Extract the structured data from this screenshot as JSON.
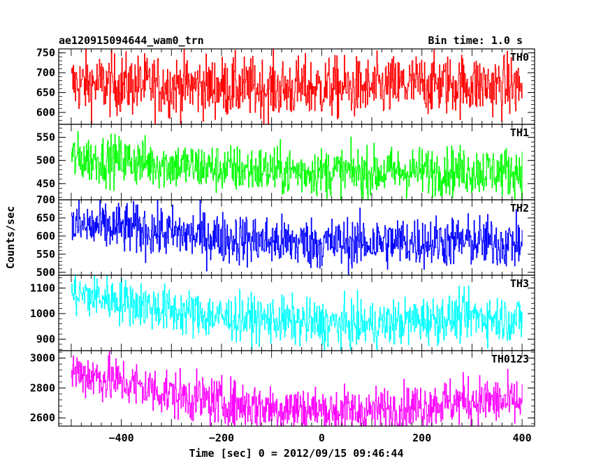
{
  "chart_data": {
    "type": "line",
    "title_left": "ae120915094644_wam0_trn",
    "title_right": "Bin time: 1.0 s",
    "xlabel": "Time [sec] 0 = 2012/09/15 09:46:44",
    "ylabel": "Counts/sec",
    "x_range": [
      -500,
      400
    ],
    "xlim": [
      -525,
      425
    ],
    "x_ticks": [
      -400,
      -200,
      0,
      200,
      400
    ],
    "x_tick_labels": [
      "−400",
      "−200",
      "0",
      "200",
      "400"
    ],
    "grid": false,
    "panels": [
      {
        "name": "TH0",
        "color": "#ff0000",
        "ylim": [
          570,
          760
        ],
        "y_ticks": [
          600,
          650,
          700,
          750
        ],
        "trend": [
          [
            -500,
            672
          ],
          [
            -300,
            668
          ],
          [
            -100,
            660
          ],
          [
            0,
            662
          ],
          [
            100,
            660
          ],
          [
            200,
            672
          ],
          [
            300,
            670
          ],
          [
            400,
            665
          ]
        ],
        "noise": 38
      },
      {
        "name": "TH1",
        "color": "#00ff00",
        "ylim": [
          415,
          578
        ],
        "y_ticks": [
          450,
          500,
          550
        ],
        "trend": [
          [
            -500,
            505
          ],
          [
            -400,
            500
          ],
          [
            -300,
            490
          ],
          [
            -200,
            482
          ],
          [
            -100,
            478
          ],
          [
            0,
            475
          ],
          [
            100,
            474
          ],
          [
            200,
            477
          ],
          [
            300,
            478
          ],
          [
            400,
            475
          ]
        ],
        "noise": 26
      },
      {
        "name": "TH2",
        "color": "#0000ff",
        "ylim": [
          492,
          700
        ],
        "y_ticks": [
          500,
          550,
          600,
          650,
          700
        ],
        "trend": [
          [
            -500,
            628
          ],
          [
            -400,
            622
          ],
          [
            -300,
            608
          ],
          [
            -200,
            595
          ],
          [
            -100,
            585
          ],
          [
            0,
            580
          ],
          [
            100,
            582
          ],
          [
            200,
            585
          ],
          [
            300,
            585
          ],
          [
            400,
            580
          ]
        ],
        "noise": 35
      },
      {
        "name": "TH3",
        "color": "#00ffff",
        "ylim": [
          855,
          1150
        ],
        "y_ticks": [
          900,
          1000,
          1100
        ],
        "trend": [
          [
            -500,
            1080
          ],
          [
            -400,
            1050
          ],
          [
            -300,
            1010
          ],
          [
            -200,
            985
          ],
          [
            -100,
            975
          ],
          [
            0,
            960
          ],
          [
            100,
            955
          ],
          [
            200,
            975
          ],
          [
            300,
            990
          ],
          [
            400,
            975
          ]
        ],
        "noise": 45
      },
      {
        "name": "TH0123",
        "color": "#ff00ff",
        "ylim": [
          2545,
          3050
        ],
        "y_ticks": [
          2600,
          2800,
          3000
        ],
        "trend": [
          [
            -500,
            2910
          ],
          [
            -400,
            2840
          ],
          [
            -300,
            2760
          ],
          [
            -200,
            2700
          ],
          [
            -100,
            2670
          ],
          [
            0,
            2650
          ],
          [
            100,
            2640
          ],
          [
            200,
            2680
          ],
          [
            300,
            2720
          ],
          [
            400,
            2700
          ]
        ],
        "noise": 80
      }
    ]
  }
}
